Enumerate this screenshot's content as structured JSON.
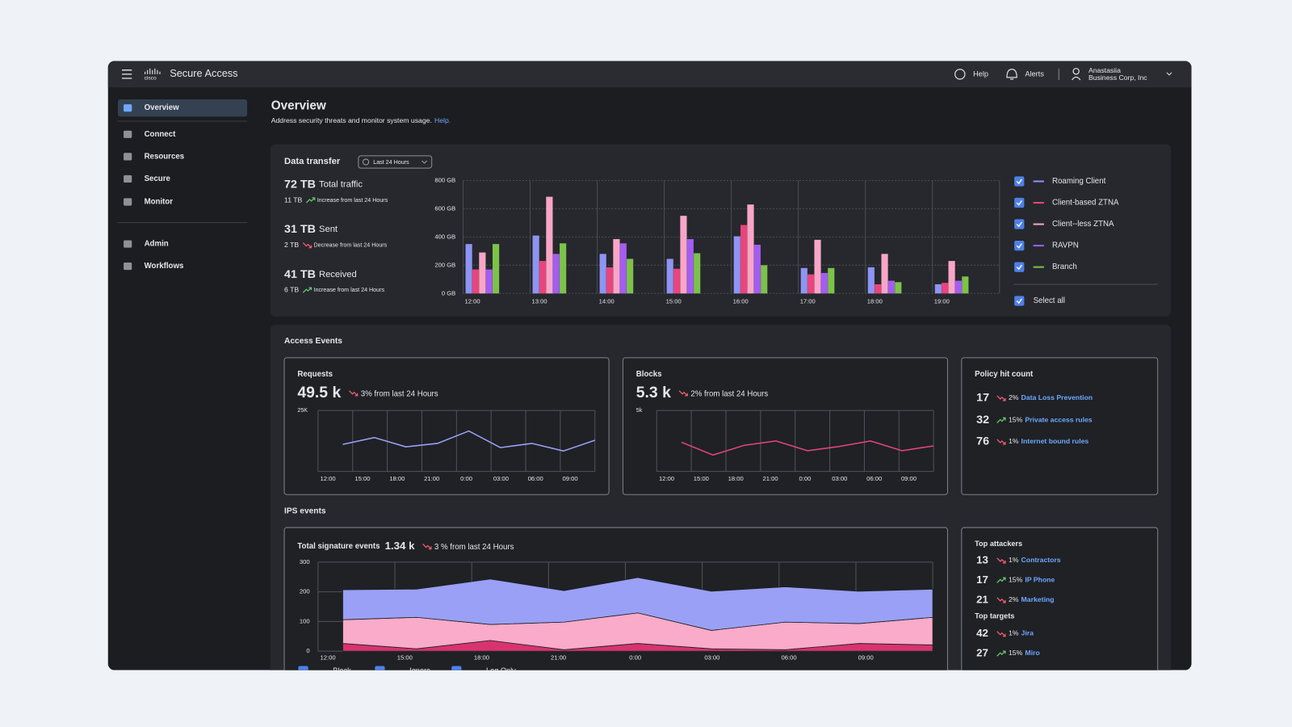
{
  "header": {
    "logo": "cisco",
    "product": "Secure Access",
    "help": "Help",
    "alerts": "Alerts",
    "user_name": "Anastasiia",
    "user_org": "Business Corp, Inc"
  },
  "sidebar": {
    "items": [
      {
        "label": "Overview",
        "active": true
      },
      {
        "label": "Connect",
        "active": false
      },
      {
        "label": "Resources",
        "active": false
      },
      {
        "label": "Secure",
        "active": false
      },
      {
        "label": "Monitor",
        "active": false
      }
    ],
    "admin_items": [
      {
        "label": "Admin",
        "active": false
      },
      {
        "label": "Workflows",
        "active": false
      }
    ]
  },
  "page": {
    "title": "Overview",
    "subtitle": "Address security threats and monitor system usage.",
    "help_link": "Help."
  },
  "data_transfer": {
    "title": "Data transfer",
    "range": "Last 24 Hours",
    "stats": [
      {
        "value": "72 TB",
        "label": "Total traffic",
        "change": "11 TB",
        "trend": "up",
        "note": "Increase from last 24 Hours"
      },
      {
        "value": "31 TB",
        "label": "Sent",
        "change": "2 TB",
        "trend": "down",
        "note": "Decrease from last 24 Hours"
      },
      {
        "value": "41 TB",
        "label": "Received",
        "change": "6 TB",
        "trend": "up",
        "note": "Increase from last 24 Hours"
      }
    ],
    "chart": {
      "type": "bar",
      "categories": [
        "12:00",
        "13:00",
        "14:00",
        "15:00",
        "16:00",
        "17:00",
        "18:00",
        "19:00"
      ],
      "series": [
        {
          "name": "Roaming Client",
          "color": "#8e94f2",
          "values": [
            350,
            410,
            280,
            245,
            405,
            180,
            185,
            65
          ]
        },
        {
          "name": "Client-based ZTNA",
          "color": "#e8457c",
          "values": [
            170,
            230,
            185,
            175,
            485,
            135,
            65,
            75
          ]
        },
        {
          "name": "Client--less ZTNA",
          "color": "#f7a6c7",
          "values": [
            290,
            685,
            385,
            550,
            630,
            380,
            280,
            230
          ]
        },
        {
          "name": "RAVPN",
          "color": "#a35df0",
          "values": [
            170,
            280,
            355,
            385,
            345,
            145,
            90,
            90
          ]
        },
        {
          "name": "Branch",
          "color": "#7cc24a",
          "values": [
            350,
            355,
            245,
            285,
            200,
            180,
            80,
            120
          ]
        }
      ],
      "ylim": [
        0,
        800
      ],
      "yticks": [
        {
          "value": 0,
          "label": "0 GB"
        },
        {
          "value": 200,
          "label": "200 GB"
        },
        {
          "value": 400,
          "label": "400 GB"
        },
        {
          "value": 600,
          "label": "600 GB"
        },
        {
          "value": 800,
          "label": "800 GB"
        }
      ],
      "grid": true
    },
    "select_all": "Select all"
  },
  "access_events": {
    "title": "Access Events",
    "requests": {
      "title": "Requests",
      "value": "49.5 k",
      "trend": "down",
      "change": "3% from last 24 Hours",
      "chart": {
        "type": "line",
        "x_labels": [
          "12:00",
          "15:00",
          "18:00",
          "21:00",
          "0:00",
          "03:00",
          "06:00",
          "09:00"
        ],
        "values": [
          11100,
          13900,
          10100,
          11500,
          16600,
          9800,
          11500,
          8400,
          12800
        ],
        "color": "#9aa0f5",
        "ylim": [
          0,
          25000
        ],
        "yticks": [
          {
            "value": 25000,
            "label": "25K"
          }
        ]
      }
    },
    "blocks": {
      "title": "Blocks",
      "value": "5.3 k",
      "trend": "down",
      "change": "2% from last 24 Hours",
      "chart": {
        "type": "line",
        "x_labels": [
          "12:00",
          "15:00",
          "18:00",
          "21:00",
          "0:00",
          "03:00",
          "06:00",
          "09:00"
        ],
        "values": [
          2400,
          1350,
          2150,
          2500,
          1700,
          2050,
          2500,
          1700,
          2100
        ],
        "color": "#e8457c",
        "ylim": [
          0,
          5000
        ],
        "yticks": [
          {
            "value": 5000,
            "label": "5k"
          }
        ]
      }
    },
    "policy": {
      "title": "Policy hit count",
      "rows": [
        {
          "count": 17,
          "trend": "down",
          "change": "2%",
          "label": "Data Loss Prevention"
        },
        {
          "count": 32,
          "trend": "up",
          "change": "15%",
          "label": "Private access rules"
        },
        {
          "count": 76,
          "trend": "down",
          "change": "1%",
          "label": "Internet bound rules"
        }
      ]
    }
  },
  "ips_events": {
    "title": "IPS events",
    "signatures": {
      "title": "Total signature events",
      "value": "1.34 k",
      "trend": "down",
      "change": "3 % from last 24 Hours",
      "chart": {
        "type": "area",
        "stacked": true,
        "x_labels": [
          "12:00",
          "15:00",
          "18:00",
          "21:00",
          "0:00",
          "03:00",
          "06:00",
          "09:00"
        ],
        "series": [
          {
            "name": "Block",
            "color": "#d8336f",
            "values": [
              26,
              8,
              36,
              5,
              26,
              8,
              5,
              26,
              21
            ]
          },
          {
            "name": "Ignore",
            "color": "#f9abc9",
            "values": [
              80,
              106,
              54,
              93,
              103,
              62,
              93,
              67,
              93
            ]
          },
          {
            "name": "Log Only",
            "color": "#9aa0f5",
            "values": [
              101,
              95,
              153,
              106,
              119,
              132,
              119,
              109,
              95
            ]
          }
        ],
        "ylim": [
          0,
          300
        ],
        "yticks": [
          0,
          100,
          200,
          300
        ]
      }
    },
    "top": {
      "attackers_title": "Top attackers",
      "attackers": [
        {
          "count": 13,
          "trend": "down",
          "change": "1%",
          "label": "Contractors"
        },
        {
          "count": 17,
          "trend": "up",
          "change": "15%",
          "label": "IP Phone"
        },
        {
          "count": 21,
          "trend": "down",
          "change": "2%",
          "label": "Marketing"
        }
      ],
      "targets_title": "Top targets",
      "targets": [
        {
          "count": 42,
          "trend": "down",
          "change": "1%",
          "label": "Jira"
        },
        {
          "count": 27,
          "trend": "up",
          "change": "15%",
          "label": "Miro"
        }
      ]
    }
  }
}
